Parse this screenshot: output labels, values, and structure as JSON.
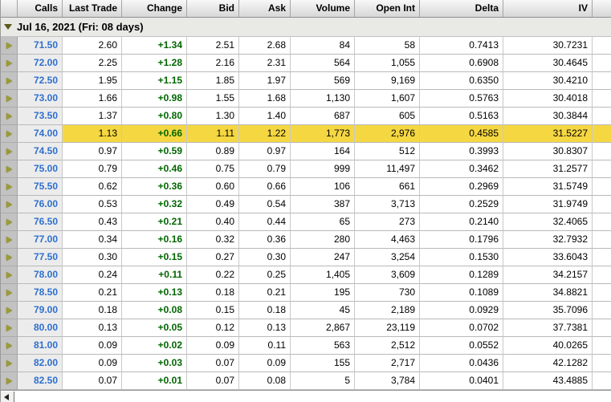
{
  "colors": {
    "highlight": "#f5d742",
    "strike_text": "#2e6fce",
    "change_text": "#006600",
    "group_arrow": "#5a5a1a"
  },
  "icons": {
    "row_expand_arrow": "right-triangle",
    "group_collapse_arrow": "down-triangle",
    "scroll_left_arrow": "left-triangle"
  },
  "table": {
    "columns": [
      {
        "key": "strike",
        "label": "Calls"
      },
      {
        "key": "last",
        "label": "Last Trade"
      },
      {
        "key": "change",
        "label": "Change"
      },
      {
        "key": "bid",
        "label": "Bid"
      },
      {
        "key": "ask",
        "label": "Ask"
      },
      {
        "key": "volume",
        "label": "Volume"
      },
      {
        "key": "open_int",
        "label": "Open Int"
      },
      {
        "key": "delta",
        "label": "Delta"
      },
      {
        "key": "iv",
        "label": "IV"
      }
    ],
    "group_header": "Jul 16, 2021 (Fri: 08 days)",
    "highlighted_strike": "74.00",
    "rows": [
      {
        "strike": "71.50",
        "last": "2.60",
        "change": "+1.34",
        "bid": "2.51",
        "ask": "2.68",
        "volume": "84",
        "open_int": "58",
        "delta": "0.7413",
        "iv": "30.7231",
        "highlighted": false
      },
      {
        "strike": "72.00",
        "last": "2.25",
        "change": "+1.28",
        "bid": "2.16",
        "ask": "2.31",
        "volume": "564",
        "open_int": "1,055",
        "delta": "0.6908",
        "iv": "30.4645",
        "highlighted": false
      },
      {
        "strike": "72.50",
        "last": "1.95",
        "change": "+1.15",
        "bid": "1.85",
        "ask": "1.97",
        "volume": "569",
        "open_int": "9,169",
        "delta": "0.6350",
        "iv": "30.4210",
        "highlighted": false
      },
      {
        "strike": "73.00",
        "last": "1.66",
        "change": "+0.98",
        "bid": "1.55",
        "ask": "1.68",
        "volume": "1,130",
        "open_int": "1,607",
        "delta": "0.5763",
        "iv": "30.4018",
        "highlighted": false
      },
      {
        "strike": "73.50",
        "last": "1.37",
        "change": "+0.80",
        "bid": "1.30",
        "ask": "1.40",
        "volume": "687",
        "open_int": "605",
        "delta": "0.5163",
        "iv": "30.3844",
        "highlighted": false
      },
      {
        "strike": "74.00",
        "last": "1.13",
        "change": "+0.66",
        "bid": "1.11",
        "ask": "1.22",
        "volume": "1,773",
        "open_int": "2,976",
        "delta": "0.4585",
        "iv": "31.5227",
        "highlighted": true
      },
      {
        "strike": "74.50",
        "last": "0.97",
        "change": "+0.59",
        "bid": "0.89",
        "ask": "0.97",
        "volume": "164",
        "open_int": "512",
        "delta": "0.3993",
        "iv": "30.8307",
        "highlighted": false
      },
      {
        "strike": "75.00",
        "last": "0.79",
        "change": "+0.46",
        "bid": "0.75",
        "ask": "0.79",
        "volume": "999",
        "open_int": "11,497",
        "delta": "0.3462",
        "iv": "31.2577",
        "highlighted": false
      },
      {
        "strike": "75.50",
        "last": "0.62",
        "change": "+0.36",
        "bid": "0.60",
        "ask": "0.66",
        "volume": "106",
        "open_int": "661",
        "delta": "0.2969",
        "iv": "31.5749",
        "highlighted": false
      },
      {
        "strike": "76.00",
        "last": "0.53",
        "change": "+0.32",
        "bid": "0.49",
        "ask": "0.54",
        "volume": "387",
        "open_int": "3,713",
        "delta": "0.2529",
        "iv": "31.9749",
        "highlighted": false
      },
      {
        "strike": "76.50",
        "last": "0.43",
        "change": "+0.21",
        "bid": "0.40",
        "ask": "0.44",
        "volume": "65",
        "open_int": "273",
        "delta": "0.2140",
        "iv": "32.4065",
        "highlighted": false
      },
      {
        "strike": "77.00",
        "last": "0.34",
        "change": "+0.16",
        "bid": "0.32",
        "ask": "0.36",
        "volume": "280",
        "open_int": "4,463",
        "delta": "0.1796",
        "iv": "32.7932",
        "highlighted": false
      },
      {
        "strike": "77.50",
        "last": "0.30",
        "change": "+0.15",
        "bid": "0.27",
        "ask": "0.30",
        "volume": "247",
        "open_int": "3,254",
        "delta": "0.1530",
        "iv": "33.6043",
        "highlighted": false
      },
      {
        "strike": "78.00",
        "last": "0.24",
        "change": "+0.11",
        "bid": "0.22",
        "ask": "0.25",
        "volume": "1,405",
        "open_int": "3,609",
        "delta": "0.1289",
        "iv": "34.2157",
        "highlighted": false
      },
      {
        "strike": "78.50",
        "last": "0.21",
        "change": "+0.13",
        "bid": "0.18",
        "ask": "0.21",
        "volume": "195",
        "open_int": "730",
        "delta": "0.1089",
        "iv": "34.8821",
        "highlighted": false
      },
      {
        "strike": "79.00",
        "last": "0.18",
        "change": "+0.08",
        "bid": "0.15",
        "ask": "0.18",
        "volume": "45",
        "open_int": "2,189",
        "delta": "0.0929",
        "iv": "35.7096",
        "highlighted": false
      },
      {
        "strike": "80.00",
        "last": "0.13",
        "change": "+0.05",
        "bid": "0.12",
        "ask": "0.13",
        "volume": "2,867",
        "open_int": "23,119",
        "delta": "0.0702",
        "iv": "37.7381",
        "highlighted": false
      },
      {
        "strike": "81.00",
        "last": "0.09",
        "change": "+0.02",
        "bid": "0.09",
        "ask": "0.11",
        "volume": "563",
        "open_int": "2,512",
        "delta": "0.0552",
        "iv": "40.0265",
        "highlighted": false
      },
      {
        "strike": "82.00",
        "last": "0.09",
        "change": "+0.03",
        "bid": "0.07",
        "ask": "0.09",
        "volume": "155",
        "open_int": "2,717",
        "delta": "0.0436",
        "iv": "42.1282",
        "highlighted": false
      },
      {
        "strike": "82.50",
        "last": "0.07",
        "change": "+0.01",
        "bid": "0.07",
        "ask": "0.08",
        "volume": "5",
        "open_int": "3,784",
        "delta": "0.0401",
        "iv": "43.4885",
        "highlighted": false
      }
    ]
  }
}
